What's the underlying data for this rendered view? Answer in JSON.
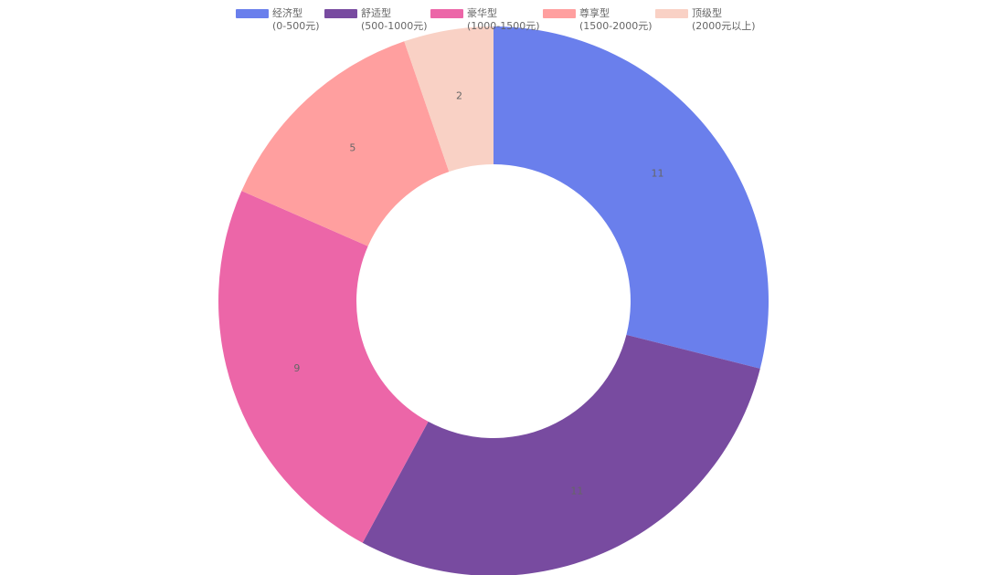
{
  "chart_data": {
    "type": "pie",
    "variant": "doughnut",
    "categories": [
      "经济型",
      "舒适型",
      "豪华型",
      "尊享型",
      "顶级型"
    ],
    "category_ranges": [
      "(0-500元)",
      "(500-1000元)",
      "(1000-1500元)",
      "(1500-2000元)",
      "(2000元以上)"
    ],
    "values": [
      11,
      11,
      9,
      5,
      2
    ],
    "colors": [
      "#6a7fec",
      "#784ba0",
      "#ec66a8",
      "#ff9f9f",
      "#f9d1c5"
    ],
    "legend_position": "top",
    "title": ""
  }
}
